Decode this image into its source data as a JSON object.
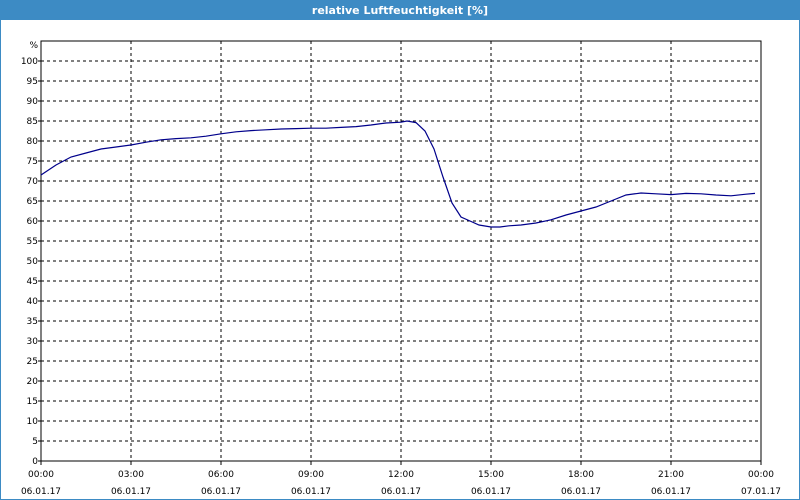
{
  "window": {
    "title": "relative Luftfeuchtigkeit [%]"
  },
  "chart_data": {
    "type": "line",
    "title": "relative Luftfeuchtigkeit [%]",
    "ylabel": "%",
    "xlabel": "",
    "ylim": [
      0,
      105
    ],
    "yticks": [
      0,
      5,
      10,
      15,
      20,
      25,
      30,
      35,
      40,
      45,
      50,
      55,
      60,
      65,
      70,
      75,
      80,
      85,
      90,
      95,
      100
    ],
    "grid": true,
    "xticks": [
      {
        "time": "00:00",
        "date": "06.01.17"
      },
      {
        "time": "03:00",
        "date": "06.01.17"
      },
      {
        "time": "06:00",
        "date": "06.01.17"
      },
      {
        "time": "09:00",
        "date": "06.01.17"
      },
      {
        "time": "12:00",
        "date": "06.01.17"
      },
      {
        "time": "15:00",
        "date": "06.01.17"
      },
      {
        "time": "18:00",
        "date": "06.01.17"
      },
      {
        "time": "21:00",
        "date": "06.01.17"
      },
      {
        "time": "00:00",
        "date": "07.01.17"
      }
    ],
    "xlim_hours": [
      0,
      24
    ],
    "series": [
      {
        "color": "#00008b",
        "x": [
          0,
          0.5,
          1,
          1.5,
          2,
          2.5,
          3,
          3.5,
          4,
          4.5,
          5,
          5.5,
          6,
          6.5,
          7,
          7.5,
          8,
          8.5,
          9,
          9.5,
          10,
          10.5,
          11,
          11.5,
          12,
          12.2,
          12.5,
          12.8,
          13.1,
          13.4,
          13.7,
          14,
          14.3,
          14.6,
          15,
          15.3,
          15.6,
          16,
          16.5,
          17,
          17.5,
          18,
          18.5,
          19,
          19.5,
          20,
          20.5,
          21,
          21.5,
          22,
          22.5,
          23,
          23.5,
          23.8
        ],
        "y": [
          71.5,
          74,
          76,
          77,
          78,
          78.5,
          79,
          79.7,
          80.3,
          80.6,
          80.8,
          81.2,
          81.8,
          82.3,
          82.6,
          82.8,
          83,
          83.1,
          83.2,
          83.2,
          83.4,
          83.6,
          84,
          84.5,
          84.7,
          85,
          84.6,
          82.5,
          78,
          71,
          64.5,
          61,
          60,
          59,
          58.5,
          58.5,
          58.8,
          59,
          59.5,
          60.3,
          61.5,
          62.5,
          63.5,
          65,
          66.5,
          67,
          66.8,
          66.6,
          66.9,
          66.8,
          66.5,
          66.3,
          66.7,
          66.9
        ]
      }
    ]
  }
}
